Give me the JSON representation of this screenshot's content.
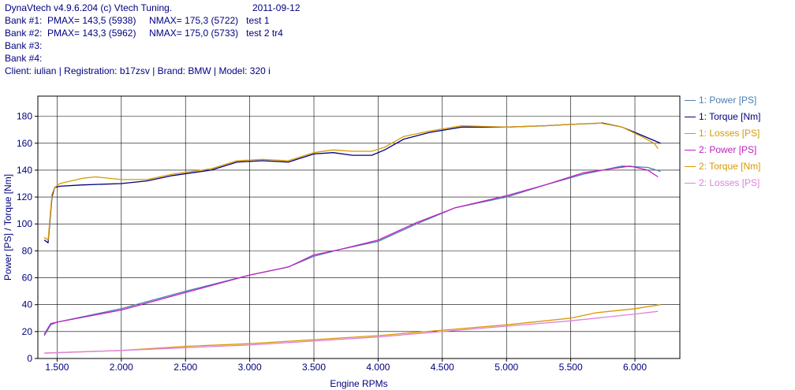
{
  "header": {
    "title": "DynaVtech v4.9.6.204 (c) Vtech Tuning.",
    "date": "2011-09-12",
    "bank1": "Bank #1:  PMAX= 143,5 (5938)     NMAX= 175,3 (5722)   test 1",
    "bank2": "Bank #2:  PMAX= 143,3 (5962)     NMAX= 175,0 (5733)   test 2 tr4",
    "bank3": "Bank #3:",
    "bank4": "Bank #4:",
    "client": "Client: iulian | Registration: b17zsv | Brand: BMW | Model: 320 i"
  },
  "chart_data": {
    "type": "line",
    "xlabel": "Engine RPMs",
    "ylabel": "Power [PS] / Torque [Nm]",
    "xlim": [
      1350,
      6350
    ],
    "ylim": [
      0,
      195
    ],
    "x_ticks": [
      1500,
      2000,
      2500,
      3000,
      3500,
      4000,
      4500,
      5000,
      5500,
      6000
    ],
    "x_tick_labels": [
      "1.500",
      "2.000",
      "2.500",
      "3.000",
      "3.500",
      "4.000",
      "4.500",
      "5.000",
      "5.500",
      "6.000"
    ],
    "y_ticks": [
      0,
      20,
      40,
      60,
      80,
      100,
      120,
      140,
      160,
      180
    ],
    "y_tick_labels": [
      "0",
      "20",
      "40",
      "60",
      "80",
      "100",
      "120",
      "140",
      "160",
      "180"
    ],
    "grid": true,
    "legend_position": "right",
    "series": [
      {
        "name": "1: Power [PS]",
        "color": "#4a7fb0",
        "x": [
          1400,
          1450,
          1500,
          2000,
          2500,
          3000,
          3300,
          3500,
          3700,
          4000,
          4300,
          4600,
          5000,
          5300,
          5600,
          5900,
          6100,
          6200
        ],
        "y": [
          17,
          25,
          27,
          37,
          50,
          62,
          68,
          76,
          81,
          87,
          100,
          112,
          120,
          129,
          137,
          143,
          142,
          139
        ]
      },
      {
        "name": "1: Torque [Nm]",
        "color": "#000080",
        "x": [
          1400,
          1430,
          1460,
          1480,
          1520,
          1700,
          2000,
          2200,
          2400,
          2700,
          2900,
          3100,
          3300,
          3500,
          3650,
          3800,
          3950,
          4050,
          4200,
          4400,
          4650,
          5000,
          5300,
          5500,
          5750,
          5900,
          6050,
          6150,
          6200
        ],
        "y": [
          88,
          86,
          120,
          127,
          128,
          129,
          130,
          132,
          136,
          140,
          146,
          147,
          146,
          152,
          153,
          151,
          151,
          155,
          163,
          168,
          172,
          172,
          173,
          174,
          175,
          172,
          166,
          162,
          160
        ]
      },
      {
        "name": "1: Losses [PS]",
        "color": "#d89a00",
        "x": [
          1400,
          2000,
          2500,
          3000,
          3500,
          4000,
          4500,
          5000,
          5500,
          5700,
          6000,
          6200
        ],
        "y": [
          4,
          6,
          9,
          11,
          14,
          17,
          21,
          25,
          30,
          34,
          37,
          40
        ]
      },
      {
        "name": "2: Power [PS]",
        "color": "#c020c0",
        "x": [
          1400,
          1450,
          1500,
          2000,
          2500,
          3000,
          3300,
          3500,
          3700,
          4000,
          4300,
          4600,
          5000,
          5300,
          5600,
          5960,
          6100,
          6180
        ],
        "y": [
          18,
          26,
          27,
          36,
          49,
          62,
          68,
          77,
          81,
          88,
          101,
          112,
          121,
          129,
          138,
          143,
          140,
          135
        ]
      },
      {
        "name": "2: Torque [Nm]",
        "color": "#d89a00",
        "x": [
          1400,
          1430,
          1460,
          1480,
          1520,
          1700,
          1800,
          2000,
          2200,
          2400,
          2700,
          2900,
          3100,
          3300,
          3500,
          3650,
          3800,
          3950,
          4050,
          4200,
          4400,
          4650,
          5000,
          5300,
          5500,
          5730,
          5900,
          6050,
          6150,
          6180
        ],
        "y": [
          90,
          88,
          122,
          127,
          130,
          134,
          135,
          133,
          133,
          137,
          141,
          147,
          148,
          147,
          153,
          155,
          154,
          154,
          157,
          165,
          169,
          173,
          172,
          173,
          174,
          175,
          172,
          165,
          160,
          156
        ]
      },
      {
        "name": "2: Losses [PS]",
        "color": "#e080e0",
        "x": [
          1400,
          2000,
          2500,
          3000,
          3500,
          4000,
          4500,
          5000,
          5500,
          6000,
          6180
        ],
        "y": [
          4,
          6,
          8,
          10,
          13,
          16,
          20,
          24,
          28,
          33,
          35
        ]
      }
    ]
  }
}
